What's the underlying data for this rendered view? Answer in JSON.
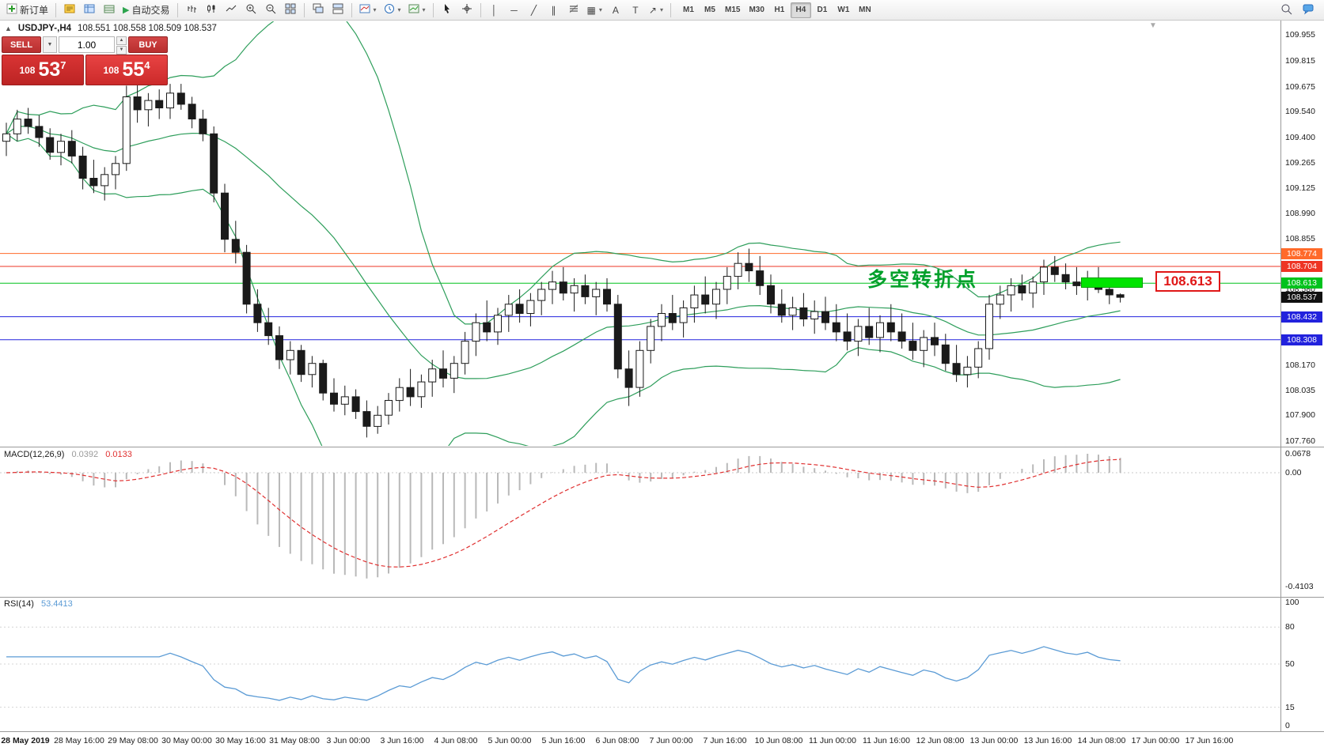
{
  "toolbar": {
    "new_order": "新订单",
    "autotrading": "自动交易",
    "timeframes": [
      "M1",
      "M5",
      "M15",
      "M30",
      "H1",
      "H4",
      "D1",
      "W1",
      "MN"
    ],
    "active_timeframe": "H4"
  },
  "icons": {
    "collapse": "▲",
    "dropdown": "▾",
    "play": "▶",
    "vertical_line": "│",
    "horizontal_line": "─",
    "trendline": "╱",
    "channel": "∥",
    "shapes": "▦",
    "text_tool": "A",
    "label_tool": "T",
    "arrow_tool": "↗",
    "spinner_up": "▲",
    "spinner_down": "▼",
    "shift_marker": "▼"
  },
  "trade_panel": {
    "sell_label": "SELL",
    "buy_label": "BUY",
    "volume": "1.00",
    "sell_price_prefix": "108",
    "sell_price_main": "53",
    "sell_price_sup": "7",
    "buy_price_prefix": "108",
    "buy_price_main": "55",
    "buy_price_sup": "4"
  },
  "chart": {
    "header_symbol": "USDJPY-,H4",
    "header_ohlc": "108.551 108.558 108.509 108.537",
    "annotation": "多空转折点",
    "callout_label": "108.613",
    "axis_labels": [
      {
        "price": 109.955,
        "label": "109.955"
      },
      {
        "price": 109.815,
        "label": "109.815"
      },
      {
        "price": 109.675,
        "label": "109.675"
      },
      {
        "price": 109.54,
        "label": "109.540"
      },
      {
        "price": 109.4,
        "label": "109.400"
      },
      {
        "price": 109.265,
        "label": "109.265"
      },
      {
        "price": 109.125,
        "label": "109.125"
      },
      {
        "price": 108.99,
        "label": "108.990"
      },
      {
        "price": 108.855,
        "label": "108.855"
      },
      {
        "price": 108.58,
        "label": "108.580"
      },
      {
        "price": 108.17,
        "label": "108.170"
      },
      {
        "price": 108.035,
        "label": "108.035"
      },
      {
        "price": 107.9,
        "label": "107.900"
      },
      {
        "price": 107.76,
        "label": "107.760"
      }
    ],
    "levels": [
      {
        "price": 108.774,
        "label": "108.774",
        "color": "#ff6a2a",
        "line": true,
        "interactable": true
      },
      {
        "price": 108.704,
        "label": "108.704",
        "color": "#ee3524",
        "line": true,
        "interactable": true
      },
      {
        "price": 108.613,
        "label": "108.613",
        "color": "#00c21d",
        "line": true,
        "interactable": true
      },
      {
        "price": 108.537,
        "label": "108.537",
        "color": "#111111",
        "line": false,
        "interactable": false
      },
      {
        "price": 108.432,
        "label": "108.432",
        "color": "#2222dd",
        "line": true,
        "interactable": true
      },
      {
        "price": 108.308,
        "label": "108.308",
        "color": "#2222dd",
        "line": true,
        "interactable": true
      }
    ]
  },
  "macd": {
    "label": "MACD(12,26,9)",
    "value_main": "0.0392",
    "value_signal": "0.0133",
    "scale": [
      {
        "v": 0.0678,
        "label": "0.0678"
      },
      {
        "v": 0,
        "label": "0.00"
      },
      {
        "v": -0.4103,
        "label": "-0.4103"
      }
    ]
  },
  "rsi": {
    "label": "RSI(14)",
    "value": "53.4413",
    "scale": [
      {
        "v": 100,
        "label": "100"
      },
      {
        "v": 80,
        "label": "80"
      },
      {
        "v": 50,
        "label": "50"
      },
      {
        "v": 15,
        "label": "15"
      },
      {
        "v": 0,
        "label": "0"
      }
    ]
  },
  "time_axis": {
    "labels": [
      "28 May 2019",
      "28 May 16:00",
      "29 May 08:00",
      "30 May 00:00",
      "30 May 16:00",
      "31 May 08:00",
      "3 Jun 00:00",
      "3 Jun 16:00",
      "4 Jun 08:00",
      "5 Jun 00:00",
      "5 Jun 16:00",
      "6 Jun 08:00",
      "7 Jun 00:00",
      "7 Jun 16:00",
      "10 Jun 08:00",
      "11 Jun 00:00",
      "11 Jun 16:00",
      "12 Jun 08:00",
      "13 Jun 00:00",
      "13 Jun 16:00",
      "14 Jun 08:00",
      "17 Jun 00:00",
      "17 Jun 16:00"
    ]
  },
  "colors": {
    "line_red_upper": "#ff6a2a",
    "line_red_lower": "#ee3524",
    "line_green": "#00c21d",
    "highlight_green": "#00e400",
    "line_blue": "#2222dd",
    "current_price_tag": "#111111",
    "bollinger": "#2e9e5b",
    "candle_outline": "#1a1a1a",
    "macd_histogram": "#b9b9b9",
    "macd_signal": "#e03030",
    "rsi_line": "#5b9bd5",
    "annotation_green": "#00a02a",
    "callout_red": "#e01717"
  },
  "chart_data": {
    "type": "candlestick",
    "symbol": "USDJPY-",
    "timeframe": "H4",
    "last_ohlc": {
      "open": 108.551,
      "high": 108.558,
      "low": 108.509,
      "close": 108.537
    },
    "price_axis_ticks": [
      109.955,
      109.815,
      109.675,
      109.54,
      109.4,
      109.265,
      109.125,
      108.99,
      108.855,
      108.58,
      108.17,
      108.035,
      107.9,
      107.76
    ],
    "horizontal_levels": [
      108.774,
      108.704,
      108.613,
      108.432,
      108.308
    ],
    "indicators": {
      "bollinger": {
        "period": 20,
        "deviation": 2
      },
      "macd": {
        "fast": 12,
        "slow": 26,
        "signal": 9,
        "current": 0.0392,
        "current_signal": 0.0133,
        "scale_max": 0.0678,
        "scale_min": -0.4103
      },
      "rsi": {
        "period": 14,
        "current": 53.4413,
        "levels": [
          80,
          50,
          15
        ]
      }
    },
    "candles_ohlc": [
      [
        109.38,
        109.48,
        109.3,
        109.42
      ],
      [
        109.42,
        109.55,
        109.38,
        109.5
      ],
      [
        109.5,
        109.56,
        109.42,
        109.46
      ],
      [
        109.46,
        109.52,
        109.35,
        109.4
      ],
      [
        109.4,
        109.45,
        109.28,
        109.32
      ],
      [
        109.32,
        109.42,
        109.25,
        109.38
      ],
      [
        109.38,
        109.44,
        109.26,
        109.3
      ],
      [
        109.3,
        109.35,
        109.12,
        109.18
      ],
      [
        109.18,
        109.28,
        109.1,
        109.14
      ],
      [
        109.14,
        109.24,
        109.06,
        109.2
      ],
      [
        109.2,
        109.3,
        109.12,
        109.26
      ],
      [
        109.26,
        109.68,
        109.22,
        109.62
      ],
      [
        109.62,
        109.7,
        109.48,
        109.55
      ],
      [
        109.55,
        109.64,
        109.46,
        109.6
      ],
      [
        109.6,
        109.66,
        109.5,
        109.56
      ],
      [
        109.56,
        109.69,
        109.5,
        109.64
      ],
      [
        109.64,
        109.69,
        109.55,
        109.58
      ],
      [
        109.58,
        109.62,
        109.45,
        109.5
      ],
      [
        109.5,
        109.55,
        109.38,
        109.42
      ],
      [
        109.42,
        109.46,
        109.05,
        109.1
      ],
      [
        109.1,
        109.15,
        108.78,
        108.85
      ],
      [
        108.85,
        108.95,
        108.72,
        108.78
      ],
      [
        108.78,
        108.82,
        108.45,
        108.5
      ],
      [
        108.5,
        108.58,
        108.35,
        108.4
      ],
      [
        108.4,
        108.48,
        108.28,
        108.33
      ],
      [
        108.33,
        108.38,
        108.15,
        108.2
      ],
      [
        108.2,
        108.3,
        108.12,
        108.25
      ],
      [
        108.25,
        108.28,
        108.08,
        108.12
      ],
      [
        108.12,
        108.22,
        108.05,
        108.18
      ],
      [
        108.18,
        108.2,
        107.98,
        108.02
      ],
      [
        108.02,
        108.1,
        107.92,
        107.96
      ],
      [
        107.96,
        108.06,
        107.9,
        108.0
      ],
      [
        108.0,
        108.04,
        107.88,
        107.92
      ],
      [
        107.92,
        107.98,
        107.78,
        107.84
      ],
      [
        107.84,
        107.95,
        107.8,
        107.9
      ],
      [
        107.9,
        108.02,
        107.85,
        107.98
      ],
      [
        107.98,
        108.1,
        107.92,
        108.05
      ],
      [
        108.05,
        108.15,
        107.95,
        108.0
      ],
      [
        108.0,
        108.12,
        107.94,
        108.08
      ],
      [
        108.08,
        108.2,
        108.0,
        108.15
      ],
      [
        108.15,
        108.25,
        108.05,
        108.1
      ],
      [
        108.1,
        108.22,
        108.02,
        108.18
      ],
      [
        108.18,
        108.35,
        108.12,
        108.3
      ],
      [
        108.3,
        108.45,
        108.22,
        108.4
      ],
      [
        108.4,
        108.52,
        108.3,
        108.35
      ],
      [
        108.35,
        108.48,
        108.28,
        108.44
      ],
      [
        108.44,
        108.55,
        108.35,
        108.5
      ],
      [
        108.5,
        108.58,
        108.4,
        108.45
      ],
      [
        108.45,
        108.56,
        108.38,
        108.52
      ],
      [
        108.52,
        108.62,
        108.44,
        108.58
      ],
      [
        108.58,
        108.68,
        108.5,
        108.62
      ],
      [
        108.62,
        108.7,
        108.52,
        108.56
      ],
      [
        108.56,
        108.64,
        108.46,
        108.6
      ],
      [
        108.6,
        108.66,
        108.5,
        108.54
      ],
      [
        108.54,
        108.62,
        108.44,
        108.58
      ],
      [
        108.58,
        108.64,
        108.46,
        108.5
      ],
      [
        108.5,
        108.55,
        108.1,
        108.15
      ],
      [
        108.15,
        108.25,
        107.95,
        108.05
      ],
      [
        108.05,
        108.3,
        108.0,
        108.25
      ],
      [
        108.25,
        108.42,
        108.18,
        108.38
      ],
      [
        108.38,
        108.5,
        108.3,
        108.45
      ],
      [
        108.45,
        108.55,
        108.36,
        108.4
      ],
      [
        108.4,
        108.52,
        108.32,
        108.48
      ],
      [
        108.48,
        108.6,
        108.4,
        108.55
      ],
      [
        108.55,
        108.65,
        108.45,
        108.5
      ],
      [
        108.5,
        108.62,
        108.42,
        108.58
      ],
      [
        108.58,
        108.7,
        108.5,
        108.65
      ],
      [
        108.65,
        108.78,
        108.58,
        108.72
      ],
      [
        108.72,
        108.8,
        108.62,
        108.68
      ],
      [
        108.68,
        108.76,
        108.55,
        108.6
      ],
      [
        108.6,
        108.66,
        108.45,
        108.5
      ],
      [
        108.5,
        108.58,
        108.4,
        108.44
      ],
      [
        108.44,
        108.54,
        108.36,
        108.48
      ],
      [
        108.48,
        108.56,
        108.38,
        108.42
      ],
      [
        108.42,
        108.52,
        108.34,
        108.46
      ],
      [
        108.46,
        108.54,
        108.36,
        108.4
      ],
      [
        108.4,
        108.5,
        108.3,
        108.35
      ],
      [
        108.35,
        108.45,
        108.25,
        108.3
      ],
      [
        108.3,
        108.42,
        108.22,
        108.38
      ],
      [
        108.38,
        108.48,
        108.28,
        108.32
      ],
      [
        108.32,
        108.44,
        108.24,
        108.4
      ],
      [
        108.4,
        108.5,
        108.3,
        108.35
      ],
      [
        108.35,
        108.45,
        108.26,
        108.3
      ],
      [
        108.3,
        108.4,
        108.2,
        108.25
      ],
      [
        108.25,
        108.36,
        108.16,
        108.32
      ],
      [
        108.32,
        108.4,
        108.22,
        108.28
      ],
      [
        108.28,
        108.34,
        108.14,
        108.18
      ],
      [
        108.18,
        108.28,
        108.08,
        108.12
      ],
      [
        108.12,
        108.22,
        108.05,
        108.16
      ],
      [
        108.16,
        108.3,
        108.1,
        108.26
      ],
      [
        108.26,
        108.55,
        108.2,
        108.5
      ],
      [
        108.5,
        108.6,
        108.42,
        108.55
      ],
      [
        108.55,
        108.64,
        108.46,
        108.6
      ],
      [
        108.6,
        108.66,
        108.52,
        108.56
      ],
      [
        108.56,
        108.65,
        108.48,
        108.62
      ],
      [
        108.62,
        108.74,
        108.55,
        108.7
      ],
      [
        108.7,
        108.76,
        108.62,
        108.66
      ],
      [
        108.66,
        108.72,
        108.58,
        108.62
      ],
      [
        108.62,
        108.7,
        108.55,
        108.6
      ],
      [
        108.6,
        108.68,
        108.52,
        108.64
      ],
      [
        108.64,
        108.7,
        108.56,
        108.58
      ],
      [
        108.58,
        108.64,
        108.5,
        108.55
      ],
      [
        108.551,
        108.558,
        108.509,
        108.537
      ]
    ]
  }
}
